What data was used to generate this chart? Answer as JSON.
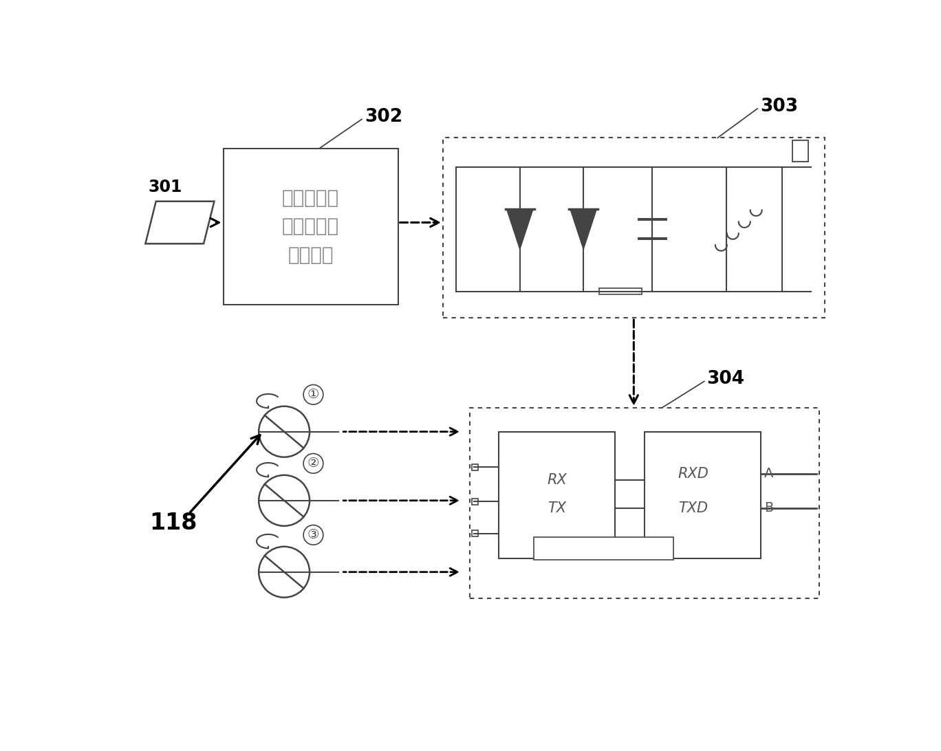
{
  "bg_color": "#ffffff",
  "label_301": "301",
  "label_302": "302",
  "label_303": "303",
  "label_304": "304",
  "label_118": "118",
  "box302_text": "调度控制信\n号收发编码\n存储单元",
  "circle_labels": [
    "①",
    "②",
    "③"
  ],
  "box304_left_text1": "RX",
  "box304_left_text2": "TX",
  "box304_right_text1": "RXD",
  "box304_right_text2": "TXD",
  "box304_right_label_A": "A",
  "box304_right_label_B": "B",
  "line_color": "#444444",
  "box_edge_color": "#555555",
  "text_color": "#555555",
  "bold_label_color": "#000000",
  "gray_text_color": "#888888"
}
